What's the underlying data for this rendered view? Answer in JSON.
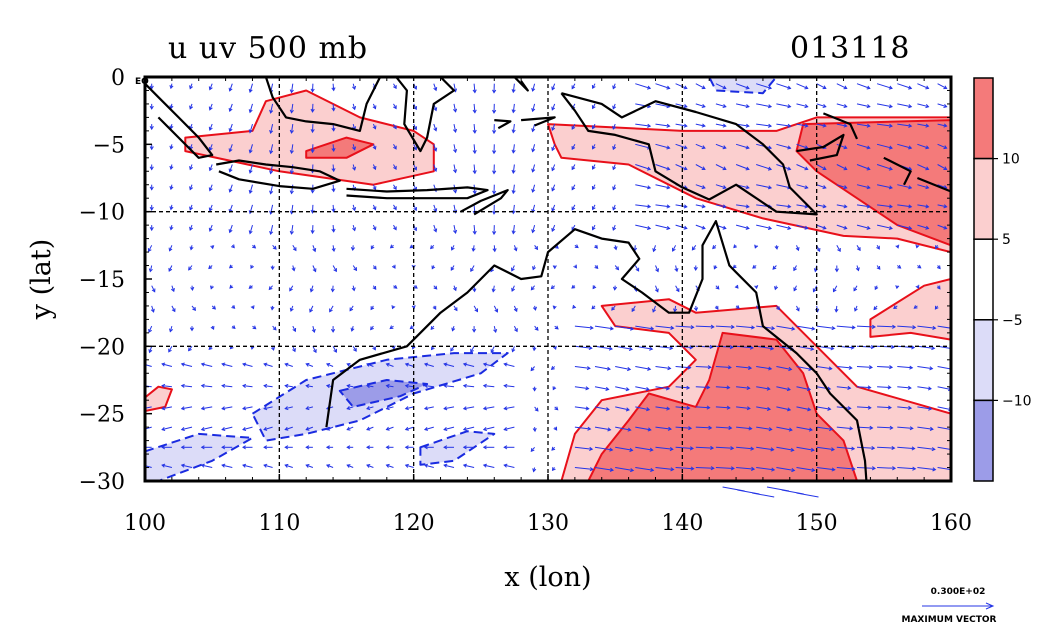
{
  "chart_data": {
    "type": "heatmap",
    "title": "u uv 500 mb",
    "timestamp": "013118",
    "xlabel": "x (lon)",
    "ylabel": "y (lat)",
    "xlim": [
      100,
      160
    ],
    "ylim": [
      -30,
      0
    ],
    "xticks": [
      {
        "value": 100,
        "label": "100"
      },
      {
        "value": 110,
        "label": "110"
      },
      {
        "value": 120,
        "label": "120"
      },
      {
        "value": 130,
        "label": "130"
      },
      {
        "value": 140,
        "label": "140"
      },
      {
        "value": 150,
        "label": "150"
      },
      {
        "value": 160,
        "label": "160"
      }
    ],
    "yticks": [
      {
        "value": 0,
        "label": "0"
      },
      {
        "value": -5,
        "label": "−5"
      },
      {
        "value": -10,
        "label": "−10"
      },
      {
        "value": -15,
        "label": "−15"
      },
      {
        "value": -20,
        "label": "−20"
      },
      {
        "value": -25,
        "label": "−25"
      },
      {
        "value": -30,
        "label": "−30"
      }
    ],
    "equator_label": "EQ",
    "gridlines": {
      "x": [
        110,
        120,
        130,
        140,
        150
      ],
      "y": [
        -10,
        -20
      ]
    },
    "colorbar": {
      "levels": [
        {
          "label": "10",
          "value": 10
        },
        {
          "label": "5",
          "value": 5
        },
        {
          "label": "−5",
          "value": -5
        },
        {
          "label": "−10",
          "value": -10
        }
      ],
      "bins": [
        {
          "range": "> 10",
          "color": "#f47a7a"
        },
        {
          "range": "5 to 10",
          "color": "#fbcfcf"
        },
        {
          "range": "-5 to 5",
          "color": "#ffffff"
        },
        {
          "range": "-10 to -5",
          "color": "#dcdcf8"
        },
        {
          "range": "< -10",
          "color": "#9c9ce8"
        }
      ]
    },
    "vector_legend": {
      "value": "0.300E+02",
      "label": "MAXIMUM VECTOR"
    },
    "colors": {
      "positive_contour": "#e8101a",
      "negative_contour": "#1a2be0",
      "vectors": "#2434e6",
      "coastline": "#000000"
    },
    "regions": [
      {
        "sign": "positive",
        "level": 5,
        "lonlat": [
          [
            103,
            -4.5
          ],
          [
            108,
            -4
          ],
          [
            109,
            -1.8
          ],
          [
            112,
            -1
          ],
          [
            116,
            -3
          ],
          [
            120,
            -4
          ],
          [
            121.5,
            -5
          ],
          [
            121.5,
            -7
          ],
          [
            117,
            -8
          ],
          [
            110,
            -7
          ],
          [
            103,
            -5.5
          ]
        ]
      },
      {
        "sign": "positive",
        "level": 10,
        "lonlat": [
          [
            112,
            -5.5
          ],
          [
            115,
            -4.5
          ],
          [
            117,
            -5
          ],
          [
            115,
            -6
          ],
          [
            112,
            -6
          ]
        ]
      },
      {
        "sign": "positive",
        "level": 5,
        "lonlat": [
          [
            130,
            -3.5
          ],
          [
            140,
            -4
          ],
          [
            147,
            -4
          ],
          [
            150,
            -3
          ],
          [
            160,
            -3
          ],
          [
            160,
            -13
          ],
          [
            156,
            -12
          ],
          [
            152,
            -11.8
          ],
          [
            146,
            -10.5
          ],
          [
            141,
            -9
          ],
          [
            136,
            -6.5
          ],
          [
            131,
            -6
          ],
          [
            130.5,
            -5
          ]
        ]
      },
      {
        "sign": "positive",
        "level": 10,
        "lonlat": [
          [
            149,
            -3.5
          ],
          [
            160,
            -3.2
          ],
          [
            160,
            -12.5
          ],
          [
            156,
            -11
          ],
          [
            153,
            -9
          ],
          [
            150,
            -7
          ],
          [
            148.5,
            -5.5
          ]
        ]
      },
      {
        "sign": "positive",
        "level": 5,
        "lonlat": [
          [
            134,
            -17
          ],
          [
            139,
            -16.5
          ],
          [
            141,
            -17.5
          ],
          [
            147,
            -17
          ],
          [
            150,
            -20
          ],
          [
            153,
            -23
          ],
          [
            160,
            -25
          ],
          [
            160,
            -30
          ],
          [
            131,
            -30
          ],
          [
            132,
            -26.5
          ],
          [
            134,
            -24
          ],
          [
            139,
            -23
          ],
          [
            141,
            -21
          ],
          [
            139,
            -19
          ],
          [
            135,
            -18.5
          ]
        ]
      },
      {
        "sign": "positive",
        "level": 10,
        "lonlat": [
          [
            137.5,
            -23.5
          ],
          [
            141,
            -24.5
          ],
          [
            142,
            -22.5
          ],
          [
            143,
            -19
          ],
          [
            147,
            -19.5
          ],
          [
            149,
            -22
          ],
          [
            150,
            -25
          ],
          [
            152,
            -27
          ],
          [
            153,
            -30
          ],
          [
            133,
            -30
          ],
          [
            134,
            -28
          ],
          [
            136,
            -25.5
          ]
        ]
      },
      {
        "sign": "positive",
        "level": 5,
        "lonlat": [
          [
            154,
            -18
          ],
          [
            158,
            -15.5
          ],
          [
            160,
            -15
          ],
          [
            160,
            -19.5
          ],
          [
            157,
            -19
          ],
          [
            154,
            -19.3
          ]
        ]
      },
      {
        "sign": "positive",
        "level": 5,
        "lonlat": [
          [
            100,
            -23.8
          ],
          [
            101,
            -23
          ],
          [
            102,
            -23.2
          ],
          [
            101.5,
            -24.5
          ],
          [
            100,
            -24.8
          ]
        ]
      },
      {
        "sign": "negative",
        "level": -5,
        "lonlat": [
          [
            108,
            -25
          ],
          [
            112,
            -22.5
          ],
          [
            118,
            -21
          ],
          [
            123,
            -20.5
          ],
          [
            127,
            -20.5
          ],
          [
            125,
            -22
          ],
          [
            120,
            -23.5
          ],
          [
            116,
            -25.5
          ],
          [
            112,
            -26.5
          ],
          [
            109,
            -27
          ]
        ]
      },
      {
        "sign": "negative",
        "level": -10,
        "lonlat": [
          [
            114.5,
            -23.3
          ],
          [
            118,
            -22.5
          ],
          [
            121,
            -22.8
          ],
          [
            119,
            -23.7
          ],
          [
            115.5,
            -24.5
          ]
        ]
      },
      {
        "sign": "negative",
        "level": -5,
        "lonlat": [
          [
            100,
            -27.8
          ],
          [
            104,
            -26.5
          ],
          [
            108,
            -26.8
          ],
          [
            105,
            -28.5
          ],
          [
            101,
            -30
          ],
          [
            100,
            -30
          ]
        ]
      },
      {
        "sign": "negative",
        "level": -5,
        "lonlat": [
          [
            120.5,
            -27.5
          ],
          [
            124,
            -26.3
          ],
          [
            126,
            -26.5
          ],
          [
            123,
            -28.5
          ],
          [
            120.5,
            -28.8
          ]
        ]
      },
      {
        "sign": "negative",
        "level": -5,
        "lonlat": [
          [
            142,
            0
          ],
          [
            147,
            0
          ],
          [
            146,
            -1.2
          ],
          [
            142.5,
            -1
          ]
        ]
      }
    ],
    "coastlines": [
      {
        "name": "sumatra",
        "lonlat": [
          [
            100,
            -0.5
          ],
          [
            101,
            -1.5
          ],
          [
            102.5,
            -3
          ],
          [
            104,
            -4.5
          ],
          [
            105,
            -5.8
          ],
          [
            104,
            -6
          ],
          [
            102.5,
            -4.5
          ],
          [
            101,
            -3
          ]
        ]
      },
      {
        "name": "java",
        "lonlat": [
          [
            105.3,
            -6.5
          ],
          [
            107,
            -6.2
          ],
          [
            109,
            -6.5
          ],
          [
            111,
            -6.7
          ],
          [
            113,
            -7
          ],
          [
            114.5,
            -7.7
          ],
          [
            112.5,
            -8.3
          ],
          [
            110,
            -8.1
          ],
          [
            107,
            -7.6
          ],
          [
            105.5,
            -7
          ]
        ]
      },
      {
        "name": "borneo",
        "lonlat": [
          [
            109,
            0
          ],
          [
            109.5,
            -1.5
          ],
          [
            110.5,
            -3
          ],
          [
            112,
            -3.3
          ],
          [
            114,
            -3.5
          ],
          [
            116,
            -4
          ],
          [
            116.5,
            -2
          ],
          [
            117.5,
            0
          ]
        ]
      },
      {
        "name": "sulawesi",
        "lonlat": [
          [
            118.7,
            0
          ],
          [
            119.5,
            -1
          ],
          [
            119.3,
            -3.5
          ],
          [
            120.5,
            -5.5
          ],
          [
            121,
            -4.5
          ],
          [
            121.5,
            -2
          ],
          [
            123,
            -1
          ],
          [
            122,
            0
          ]
        ]
      },
      {
        "name": "nusa_tenggara",
        "lonlat": [
          [
            115,
            -8.3
          ],
          [
            118,
            -8.5
          ],
          [
            121,
            -8.4
          ],
          [
            124,
            -8.2
          ],
          [
            125.5,
            -8.4
          ],
          [
            124,
            -9
          ],
          [
            121,
            -9
          ],
          [
            118,
            -9
          ],
          [
            115,
            -8.8
          ]
        ]
      },
      {
        "name": "timor",
        "lonlat": [
          [
            123.5,
            -10
          ],
          [
            125,
            -9.2
          ],
          [
            127,
            -8.4
          ],
          [
            126.5,
            -9
          ],
          [
            124.5,
            -10.2
          ]
        ]
      },
      {
        "name": "new_guinea",
        "lonlat": [
          [
            131,
            -1.2
          ],
          [
            134,
            -2
          ],
          [
            135.5,
            -3
          ],
          [
            138,
            -1.8
          ],
          [
            141,
            -2.6
          ],
          [
            144,
            -3.5
          ],
          [
            146,
            -5
          ],
          [
            147.5,
            -6.5
          ],
          [
            148,
            -8.2
          ],
          [
            150,
            -10.2
          ],
          [
            147,
            -10
          ],
          [
            144,
            -8
          ],
          [
            142,
            -9.1
          ],
          [
            140,
            -8.2
          ],
          [
            138,
            -7
          ],
          [
            137.5,
            -5
          ],
          [
            135,
            -4.3
          ],
          [
            133,
            -4
          ],
          [
            132,
            -2.5
          ],
          [
            131,
            -1.2
          ]
        ]
      },
      {
        "name": "australia",
        "lonlat": [
          [
            113.5,
            -26
          ],
          [
            114,
            -22.5
          ],
          [
            116,
            -21
          ],
          [
            119.5,
            -20
          ],
          [
            122,
            -17.5
          ],
          [
            124,
            -16
          ],
          [
            126,
            -14
          ],
          [
            128,
            -15
          ],
          [
            129.5,
            -14.8
          ],
          [
            130,
            -13
          ],
          [
            132,
            -11.3
          ],
          [
            134,
            -12
          ],
          [
            136,
            -12.3
          ],
          [
            136.8,
            -13.5
          ],
          [
            135.5,
            -15
          ],
          [
            137,
            -16
          ],
          [
            139,
            -17.5
          ],
          [
            140.5,
            -17.5
          ],
          [
            141.5,
            -15
          ],
          [
            141.5,
            -12.5
          ],
          [
            142.5,
            -10.7
          ],
          [
            143.5,
            -14
          ],
          [
            144,
            -14.5
          ],
          [
            145.5,
            -16
          ],
          [
            146,
            -18.5
          ],
          [
            148.5,
            -20.5
          ],
          [
            150,
            -22
          ],
          [
            151,
            -23.5
          ],
          [
            153,
            -25.5
          ],
          [
            153.6,
            -28.5
          ],
          [
            153.7,
            -30
          ]
        ]
      },
      {
        "name": "new_britain",
        "lonlat": [
          [
            148.5,
            -5.5
          ],
          [
            150.5,
            -5.2
          ],
          [
            152,
            -4.3
          ],
          [
            151.5,
            -5.8
          ],
          [
            149.5,
            -6.2
          ]
        ]
      },
      {
        "name": "new_ireland",
        "lonlat": [
          [
            150.5,
            -2.7
          ],
          [
            152.5,
            -3.5
          ],
          [
            153,
            -4.6
          ]
        ]
      },
      {
        "name": "solomon_1",
        "lonlat": [
          [
            155,
            -6
          ],
          [
            157,
            -7
          ],
          [
            156.5,
            -8
          ]
        ]
      },
      {
        "name": "solomon_2",
        "lonlat": [
          [
            157.5,
            -7.5
          ],
          [
            160,
            -8.5
          ]
        ]
      },
      {
        "name": "halmahera",
        "lonlat": [
          [
            127.5,
            0
          ],
          [
            128.5,
            -1
          ],
          [
            128,
            -0.3
          ]
        ]
      },
      {
        "name": "seram",
        "lonlat": [
          [
            128,
            -3.2
          ],
          [
            130.5,
            -3
          ],
          [
            129,
            -3.6
          ]
        ]
      },
      {
        "name": "buru",
        "lonlat": [
          [
            126,
            -3.2
          ],
          [
            127.2,
            -3.3
          ],
          [
            126.3,
            -3.8
          ]
        ]
      }
    ]
  }
}
